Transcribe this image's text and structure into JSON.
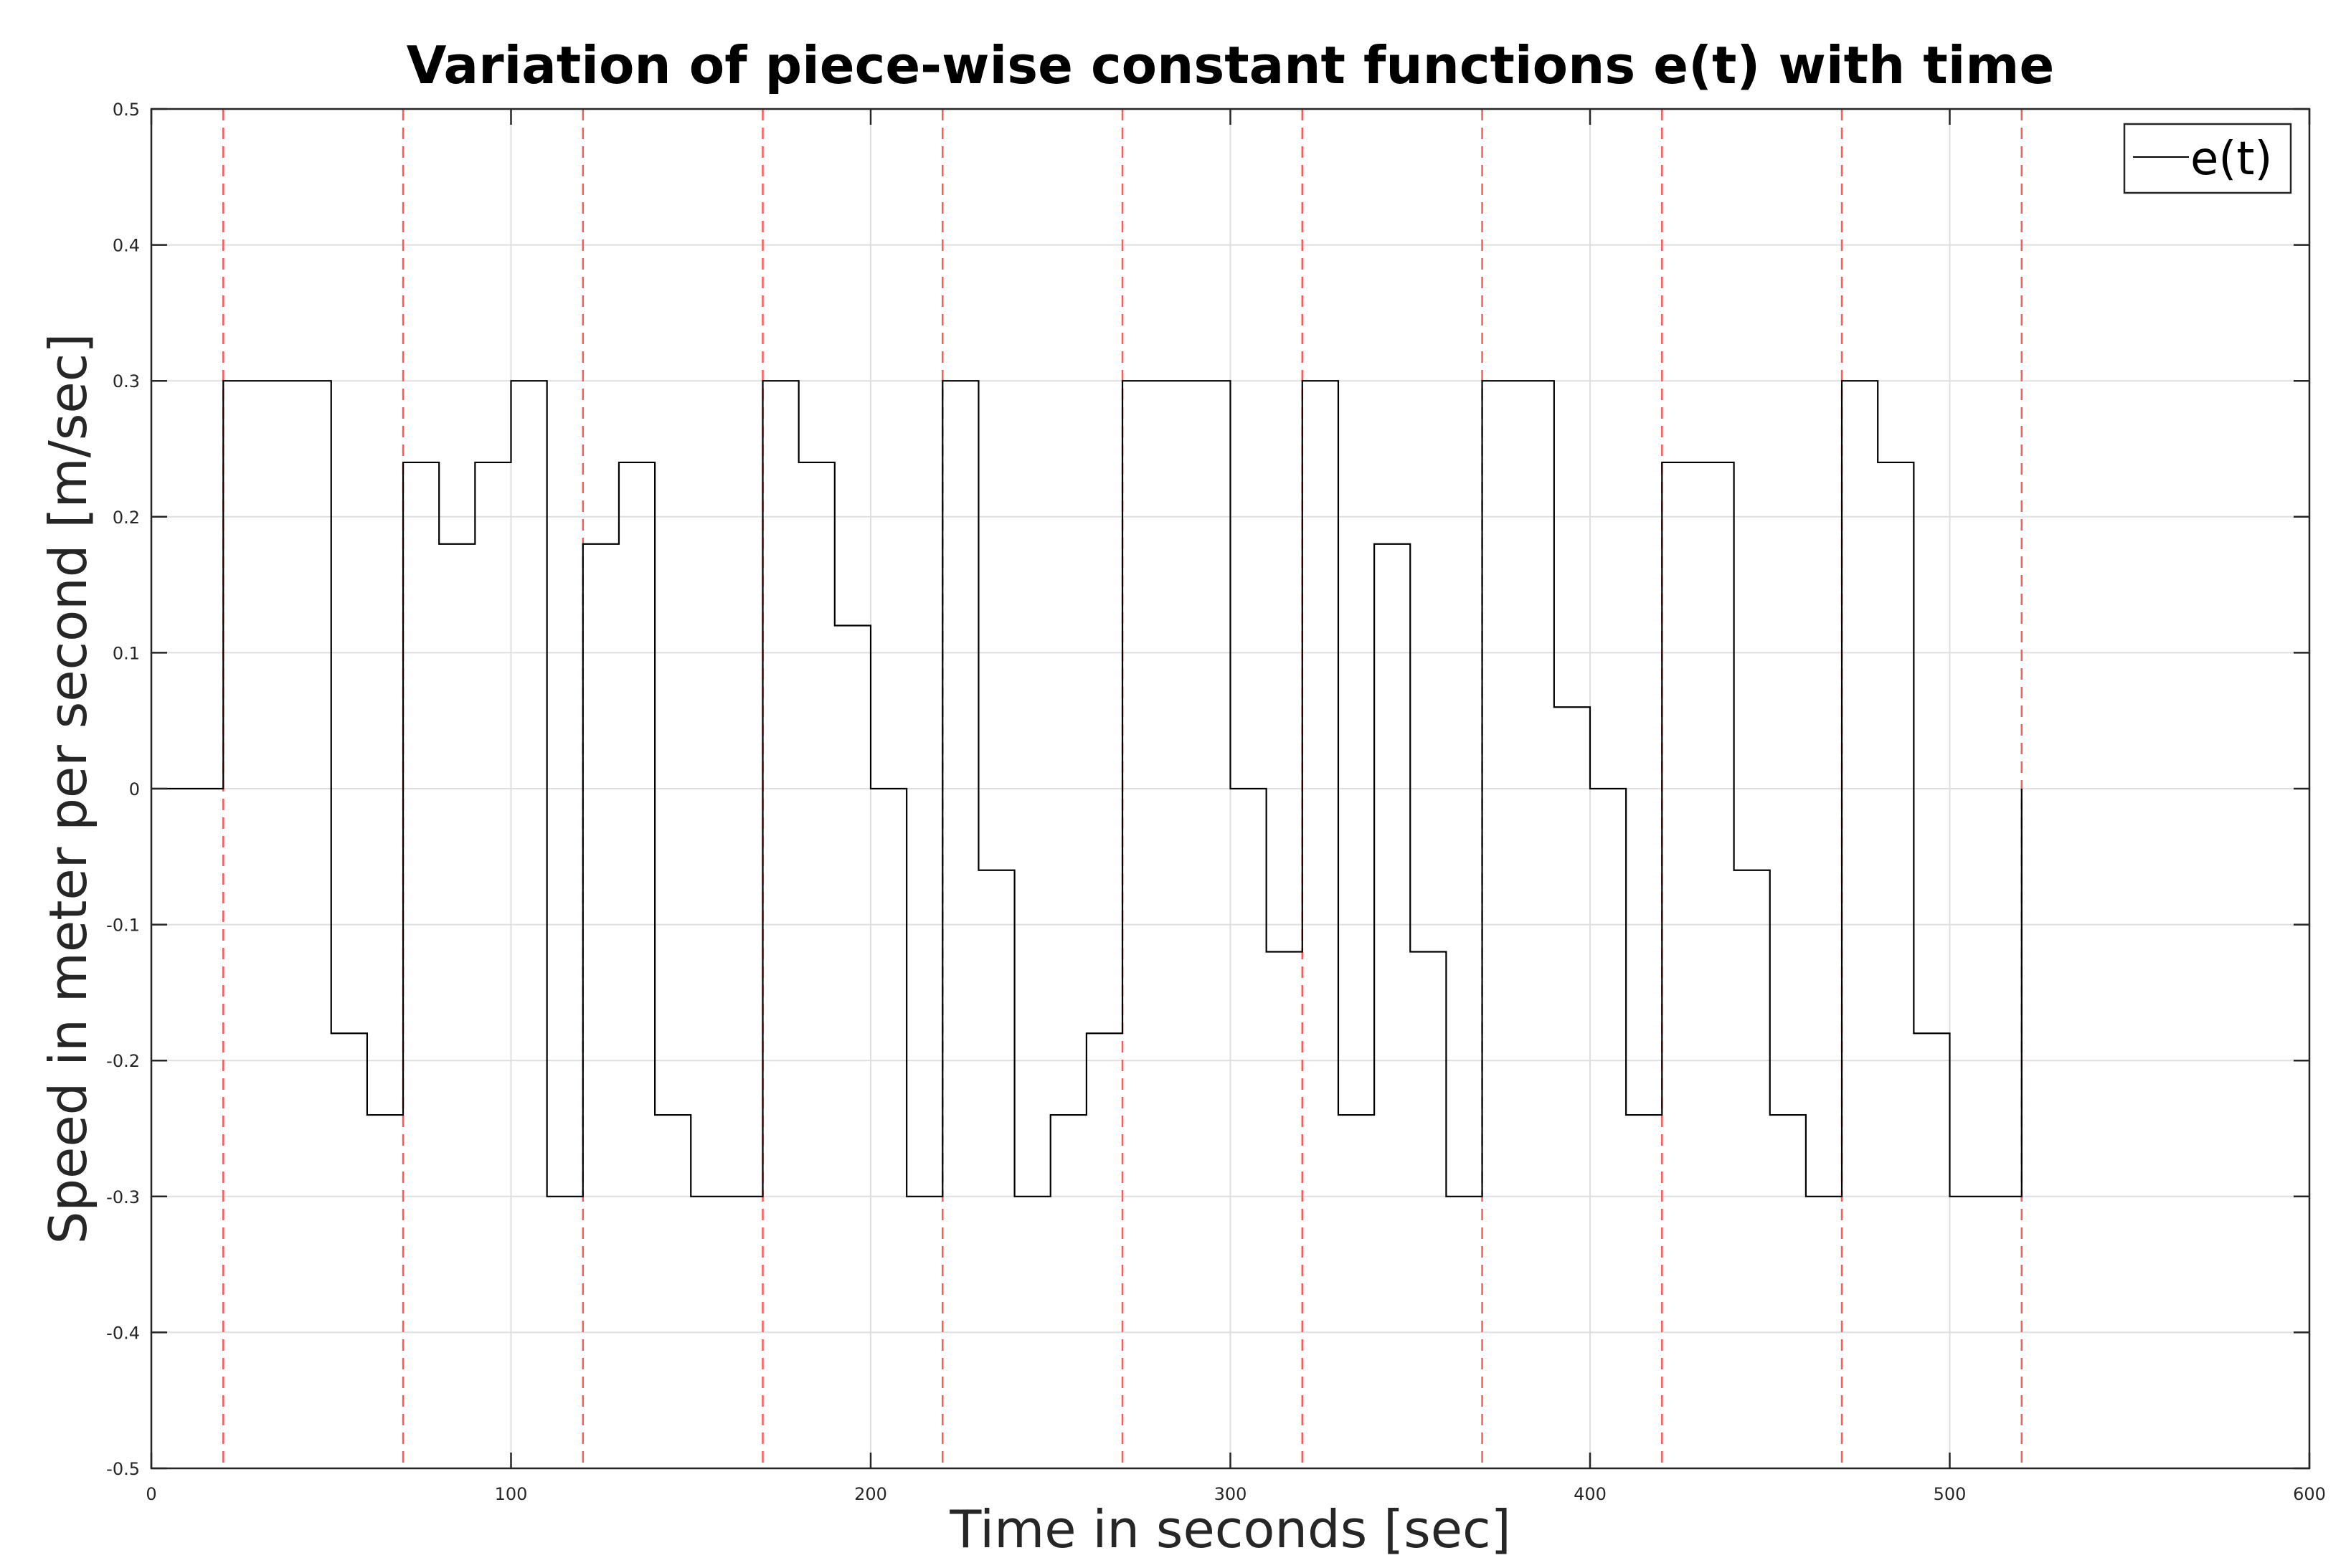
{
  "chart_data": {
    "type": "line",
    "title": "Variation of piece-wise constant functions e(t) with time",
    "xlabel": "Time in seconds [sec]",
    "ylabel": "Speed in meter per second [m/sec]",
    "xlim": [
      0,
      600
    ],
    "ylim": [
      -0.5,
      0.5
    ],
    "xticks": [
      0,
      100,
      200,
      300,
      400,
      500,
      600
    ],
    "xtick_labels": [
      "0",
      "100",
      "200",
      "300",
      "400",
      "500",
      "600"
    ],
    "yticks": [
      0.5,
      0.4,
      0.3,
      0.2,
      0.1,
      0,
      -0.1,
      -0.2,
      -0.3,
      -0.4,
      -0.5
    ],
    "ytick_labels": [
      "0.5",
      "0.4",
      "0.3",
      "0.2",
      "0.1",
      "0",
      "-0.1",
      "-0.2",
      "-0.3",
      "-0.4",
      "-0.5"
    ],
    "grid": true,
    "legend": {
      "position": "top-right",
      "entries": [
        "e(t)"
      ]
    },
    "series": [
      {
        "name": "e(t)",
        "style": "step",
        "color": "#000000",
        "x": [
          0,
          20,
          30,
          40,
          50,
          60,
          70,
          80,
          90,
          100,
          110,
          120,
          130,
          140,
          150,
          160,
          170,
          180,
          190,
          200,
          210,
          220,
          230,
          240,
          250,
          260,
          270,
          280,
          290,
          300,
          310,
          320,
          330,
          340,
          350,
          360,
          370,
          380,
          390,
          400,
          410,
          420,
          430,
          440,
          450,
          460,
          470,
          480,
          490,
          500,
          510,
          520
        ],
        "values": [
          0,
          0.3,
          0.3,
          0.3,
          -0.18,
          -0.24,
          0.24,
          0.18,
          0.24,
          0.3,
          -0.3,
          0.18,
          0.24,
          -0.24,
          -0.3,
          -0.3,
          0.3,
          0.24,
          0.12,
          0,
          -0.3,
          0.3,
          -0.06,
          -0.3,
          -0.24,
          -0.18,
          0.3,
          0.3,
          0.3,
          0,
          -0.12,
          0.3,
          -0.24,
          0.18,
          -0.12,
          -0.3,
          0.3,
          0.3,
          0.06,
          0,
          -0.24,
          0.24,
          0.24,
          -0.06,
          -0.24,
          -0.3,
          0.3,
          0.24,
          -0.18,
          -0.3,
          -0.3,
          0
        ]
      }
    ],
    "vlines": {
      "color": "#ff5a5a",
      "style": "dashed",
      "x": [
        20,
        70,
        120,
        170,
        220,
        270,
        320,
        370,
        420,
        470,
        520
      ]
    }
  }
}
